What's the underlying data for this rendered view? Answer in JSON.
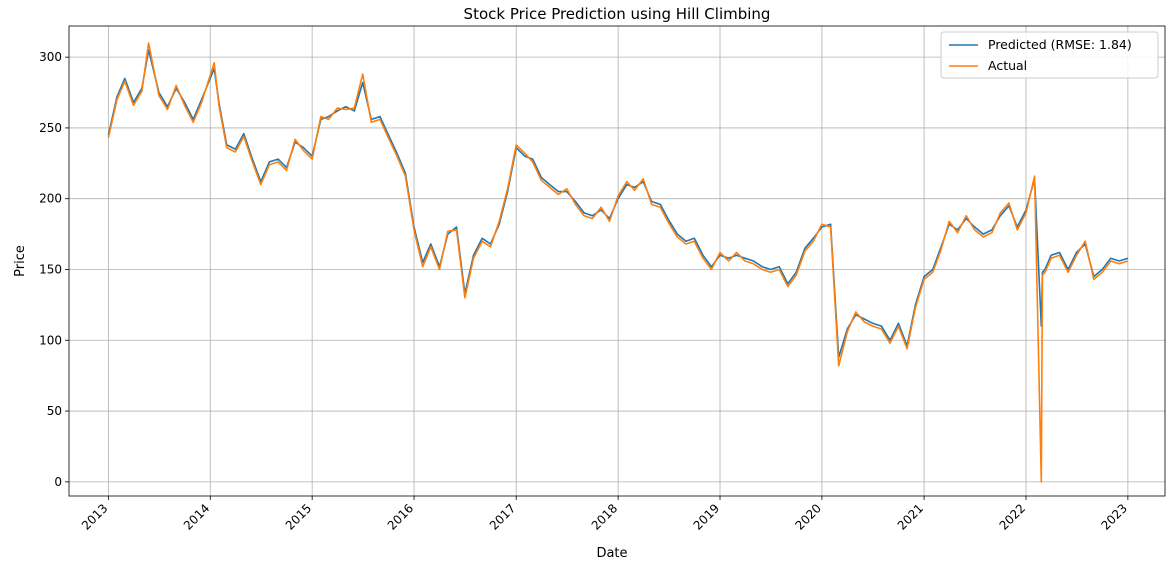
{
  "chart_data": {
    "type": "line",
    "title": "Stock Price Prediction using Hill Climbing",
    "xlabel": "Date",
    "ylabel": "Price",
    "xlim": [
      "2012-08-13",
      "2023-05-14"
    ],
    "ylim": [
      -10,
      322
    ],
    "grid": true,
    "legend_position": "top-right",
    "x_tick_labels": [
      "2013",
      "2014",
      "2015",
      "2016",
      "2017",
      "2018",
      "2019",
      "2020",
      "2021",
      "2022",
      "2023"
    ],
    "x_ticks": [
      "2013-01-01",
      "2014-01-01",
      "2015-01-01",
      "2016-01-01",
      "2017-01-01",
      "2018-01-01",
      "2019-01-01",
      "2020-01-01",
      "2021-01-01",
      "2022-01-01",
      "2023-01-01"
    ],
    "y_ticks": [
      0,
      50,
      100,
      150,
      200,
      250,
      300
    ],
    "series": [
      {
        "name": "Predicted (RMSE: 1.84)",
        "color": "#1f77b4",
        "x": [
          "2013-01-01",
          "2013-02-01",
          "2013-03-01",
          "2013-04-01",
          "2013-05-01",
          "2013-05-25",
          "2013-07-01",
          "2013-08-01",
          "2013-09-01",
          "2013-10-01",
          "2013-11-01",
          "2013-12-01",
          "2014-01-15",
          "2014-02-01",
          "2014-03-01",
          "2014-04-01",
          "2014-05-01",
          "2014-06-01",
          "2014-07-01",
          "2014-08-01",
          "2014-09-01",
          "2014-10-01",
          "2014-11-01",
          "2014-12-01",
          "2015-01-01",
          "2015-02-01",
          "2015-03-01",
          "2015-04-01",
          "2015-05-01",
          "2015-06-01",
          "2015-07-01",
          "2015-08-01",
          "2015-09-01",
          "2015-10-01",
          "2015-11-01",
          "2015-12-01",
          "2016-01-01",
          "2016-02-01",
          "2016-03-01",
          "2016-04-01",
          "2016-05-01",
          "2016-06-01",
          "2016-07-01",
          "2016-08-01",
          "2016-09-01",
          "2016-10-01",
          "2016-11-01",
          "2016-12-01",
          "2017-01-01",
          "2017-02-01",
          "2017-03-01",
          "2017-04-01",
          "2017-05-01",
          "2017-06-01",
          "2017-07-01",
          "2017-08-01",
          "2017-09-01",
          "2017-10-01",
          "2017-11-01",
          "2017-12-01",
          "2018-01-01",
          "2018-02-01",
          "2018-03-01",
          "2018-04-01",
          "2018-05-01",
          "2018-06-01",
          "2018-07-01",
          "2018-08-01",
          "2018-09-01",
          "2018-10-01",
          "2018-11-01",
          "2018-12-01",
          "2019-01-01",
          "2019-02-01",
          "2019-03-01",
          "2019-04-01",
          "2019-05-01",
          "2019-06-01",
          "2019-07-01",
          "2019-08-01",
          "2019-09-01",
          "2019-10-01",
          "2019-11-01",
          "2019-12-01",
          "2020-01-01",
          "2020-02-01",
          "2020-03-01",
          "2020-04-01",
          "2020-05-01",
          "2020-06-01",
          "2020-07-01",
          "2020-08-01",
          "2020-09-01",
          "2020-10-01",
          "2020-11-01",
          "2020-12-01",
          "2021-01-01",
          "2021-02-01",
          "2021-03-01",
          "2021-04-01",
          "2021-05-01",
          "2021-06-01",
          "2021-07-01",
          "2021-08-01",
          "2021-09-01",
          "2021-10-01",
          "2021-11-01",
          "2021-12-01",
          "2022-01-01",
          "2022-02-01",
          "2022-02-25",
          "2022-03-01",
          "2022-03-10",
          "2022-04-01",
          "2022-05-01",
          "2022-06-01",
          "2022-07-01",
          "2022-08-01",
          "2022-09-01",
          "2022-10-01",
          "2022-11-01",
          "2022-12-01",
          "2023-01-01"
        ],
        "y": [
          245,
          272,
          285,
          268,
          278,
          305,
          275,
          265,
          278,
          268,
          256,
          270,
          292,
          268,
          238,
          235,
          246,
          228,
          212,
          226,
          228,
          222,
          240,
          236,
          230,
          256,
          258,
          262,
          265,
          262,
          282,
          256,
          258,
          245,
          232,
          218,
          180,
          155,
          168,
          152,
          175,
          180,
          133,
          160,
          172,
          168,
          182,
          205,
          236,
          230,
          228,
          215,
          210,
          205,
          205,
          198,
          190,
          188,
          192,
          186,
          200,
          210,
          208,
          212,
          198,
          196,
          185,
          175,
          170,
          172,
          160,
          152,
          160,
          158,
          160,
          158,
          156,
          152,
          150,
          152,
          140,
          148,
          165,
          172,
          180,
          182,
          88,
          108,
          118,
          115,
          112,
          110,
          100,
          112,
          96,
          125,
          145,
          150,
          165,
          182,
          178,
          186,
          180,
          175,
          178,
          188,
          195,
          180,
          192,
          214,
          110,
          148,
          150,
          160,
          162,
          150,
          162,
          168,
          145,
          150,
          158,
          156,
          158
        ]
      },
      {
        "name": "Actual",
        "color": "#ff7f0e",
        "x": [
          "2013-01-01",
          "2013-02-01",
          "2013-03-01",
          "2013-04-01",
          "2013-05-01",
          "2013-05-25",
          "2013-07-01",
          "2013-08-01",
          "2013-09-01",
          "2013-10-01",
          "2013-11-01",
          "2013-12-01",
          "2014-01-15",
          "2014-02-01",
          "2014-03-01",
          "2014-04-01",
          "2014-05-01",
          "2014-06-01",
          "2014-07-01",
          "2014-08-01",
          "2014-09-01",
          "2014-10-01",
          "2014-11-01",
          "2014-12-01",
          "2015-01-01",
          "2015-02-01",
          "2015-03-01",
          "2015-04-01",
          "2015-05-01",
          "2015-06-01",
          "2015-07-01",
          "2015-08-01",
          "2015-09-01",
          "2015-10-01",
          "2015-11-01",
          "2015-12-01",
          "2016-01-01",
          "2016-02-01",
          "2016-03-01",
          "2016-04-01",
          "2016-05-01",
          "2016-06-01",
          "2016-07-01",
          "2016-08-01",
          "2016-09-01",
          "2016-10-01",
          "2016-11-01",
          "2016-12-01",
          "2017-01-01",
          "2017-02-01",
          "2017-03-01",
          "2017-04-01",
          "2017-05-01",
          "2017-06-01",
          "2017-07-01",
          "2017-08-01",
          "2017-09-01",
          "2017-10-01",
          "2017-11-01",
          "2017-12-01",
          "2018-01-01",
          "2018-02-01",
          "2018-03-01",
          "2018-04-01",
          "2018-05-01",
          "2018-06-01",
          "2018-07-01",
          "2018-08-01",
          "2018-09-01",
          "2018-10-01",
          "2018-11-01",
          "2018-12-01",
          "2019-01-01",
          "2019-02-01",
          "2019-03-01",
          "2019-04-01",
          "2019-05-01",
          "2019-06-01",
          "2019-07-01",
          "2019-08-01",
          "2019-09-01",
          "2019-10-01",
          "2019-11-01",
          "2019-12-01",
          "2020-01-01",
          "2020-02-01",
          "2020-03-01",
          "2020-04-01",
          "2020-05-01",
          "2020-06-01",
          "2020-07-01",
          "2020-08-01",
          "2020-09-01",
          "2020-10-01",
          "2020-11-01",
          "2020-12-01",
          "2021-01-01",
          "2021-02-01",
          "2021-03-01",
          "2021-04-01",
          "2021-05-01",
          "2021-06-01",
          "2021-07-01",
          "2021-08-01",
          "2021-09-01",
          "2021-10-01",
          "2021-11-01",
          "2021-12-01",
          "2022-01-01",
          "2022-02-01",
          "2022-02-25",
          "2022-03-01",
          "2022-03-10",
          "2022-04-01",
          "2022-05-01",
          "2022-06-01",
          "2022-07-01",
          "2022-08-01",
          "2022-09-01",
          "2022-10-01",
          "2022-11-01",
          "2022-12-01",
          "2023-01-01"
        ],
        "y": [
          243,
          270,
          283,
          266,
          276,
          310,
          273,
          263,
          280,
          266,
          254,
          268,
          296,
          266,
          236,
          233,
          244,
          226,
          210,
          224,
          226,
          220,
          242,
          234,
          228,
          258,
          256,
          264,
          263,
          264,
          288,
          254,
          256,
          243,
          230,
          216,
          178,
          152,
          166,
          150,
          177,
          178,
          130,
          158,
          170,
          166,
          184,
          207,
          238,
          232,
          226,
          213,
          208,
          203,
          207,
          196,
          188,
          186,
          194,
          184,
          202,
          212,
          206,
          214,
          196,
          194,
          183,
          173,
          168,
          170,
          158,
          150,
          162,
          156,
          162,
          156,
          154,
          150,
          148,
          150,
          138,
          146,
          163,
          170,
          182,
          180,
          82,
          106,
          120,
          113,
          110,
          108,
          98,
          110,
          94,
          123,
          143,
          148,
          163,
          184,
          176,
          188,
          178,
          173,
          176,
          190,
          197,
          178,
          190,
          216,
          0,
          146,
          148,
          158,
          160,
          148,
          160,
          170,
          143,
          148,
          156,
          154,
          156
        ]
      }
    ]
  }
}
